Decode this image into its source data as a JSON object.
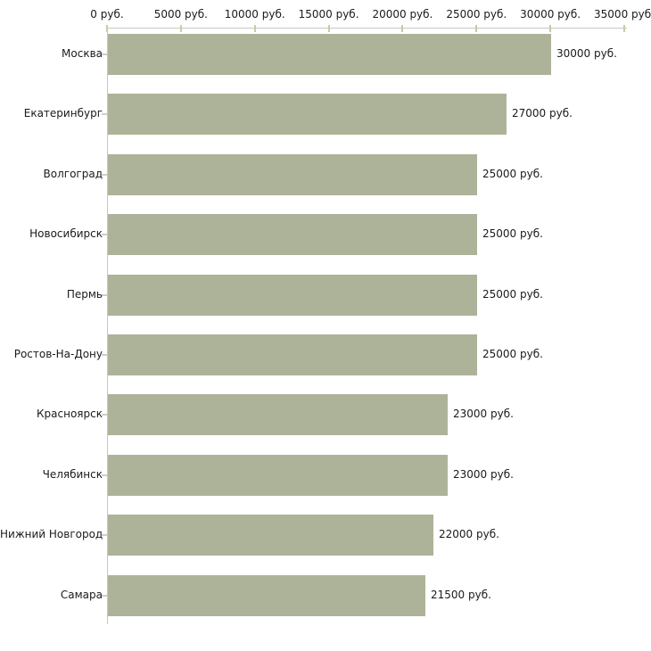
{
  "chart_data": {
    "type": "bar",
    "orientation": "horizontal",
    "title": "",
    "xlabel": "",
    "ylabel": "",
    "categories": [
      "Москва",
      "Екатеринбург",
      "Волгоград",
      "Новосибирск",
      "Пермь",
      "Ростов-На-Дону",
      "Красноярск",
      "Челябинск",
      "Нижний Новгород",
      "Самара"
    ],
    "values": [
      30000,
      27000,
      25000,
      25000,
      25000,
      25000,
      23000,
      23000,
      22000,
      21500
    ],
    "value_labels": [
      "30000 руб.",
      "27000 руб.",
      "25000 руб.",
      "25000 руб.",
      "25000 руб.",
      "25000 руб.",
      "23000 руб.",
      "23000 руб.",
      "22000 руб.",
      "21500 руб."
    ],
    "x_ticks": [
      0,
      5000,
      10000,
      15000,
      20000,
      25000,
      30000,
      35000
    ],
    "x_tick_labels": [
      "0 руб.",
      "5000 руб.",
      "10000 руб.",
      "15000 руб.",
      "20000 руб.",
      "25000 руб.",
      "30000 руб.",
      "35000 руб."
    ],
    "xlim": [
      0,
      35000
    ],
    "unit": "руб.",
    "grid": false,
    "legend_position": "none",
    "colors": {
      "bar_fill": "#adb399",
      "axis_line": "#c6c6c6",
      "axis_tick": "#c9cba0",
      "category_tick": "#cdcfc0",
      "text": "#1a1a1a",
      "background": "#ffffff"
    }
  }
}
